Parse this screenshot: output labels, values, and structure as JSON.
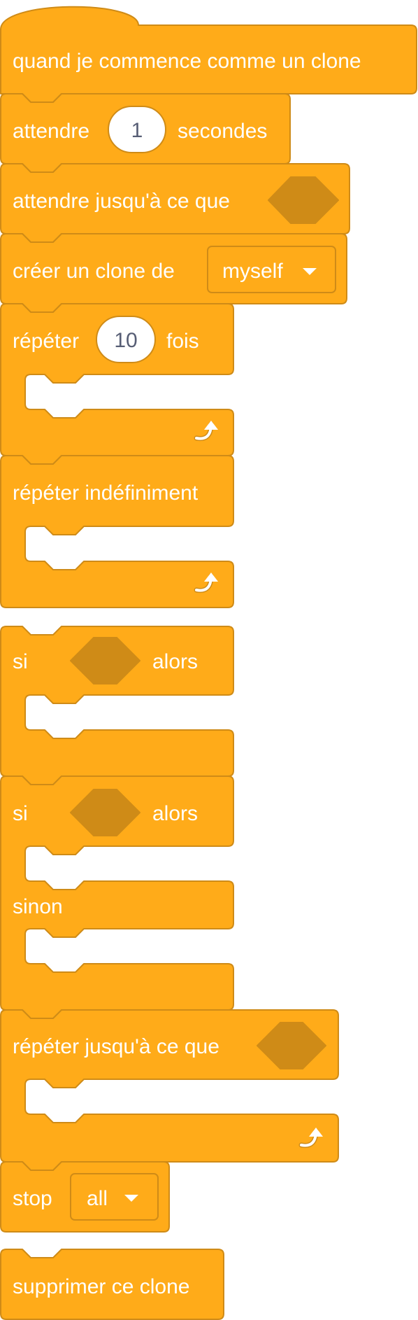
{
  "palette": "Contrôle",
  "colors": {
    "block_fill": "#FFAB19",
    "block_stroke": "#CF8B17",
    "input_text": "#575E75",
    "label_text": "#FFFFFF"
  },
  "blocks": {
    "hat_clone": {
      "label": "quand je commence comme un clone"
    },
    "wait": {
      "label_before": "attendre",
      "value": "1",
      "label_after": "secondes"
    },
    "wait_until": {
      "label": "attendre jusqu'à ce que"
    },
    "create_clone": {
      "label": "créer un clone de",
      "menu_value": "myself"
    },
    "repeat": {
      "label_before": "répéter",
      "value": "10",
      "label_after": "fois",
      "icon": "loop-arrow-icon"
    },
    "forever": {
      "label": "répéter indéfiniment",
      "icon": "loop-arrow-icon"
    },
    "if_then": {
      "label_before": "si",
      "label_after": "alors"
    },
    "if_else": {
      "label_before": "si",
      "label_after": "alors",
      "else_label": "sinon"
    },
    "repeat_until": {
      "label": "répéter jusqu'à ce que",
      "icon": "loop-arrow-icon"
    },
    "stop": {
      "label": "stop",
      "menu_value": "all"
    },
    "delete_clone": {
      "label": "supprimer ce clone"
    }
  }
}
